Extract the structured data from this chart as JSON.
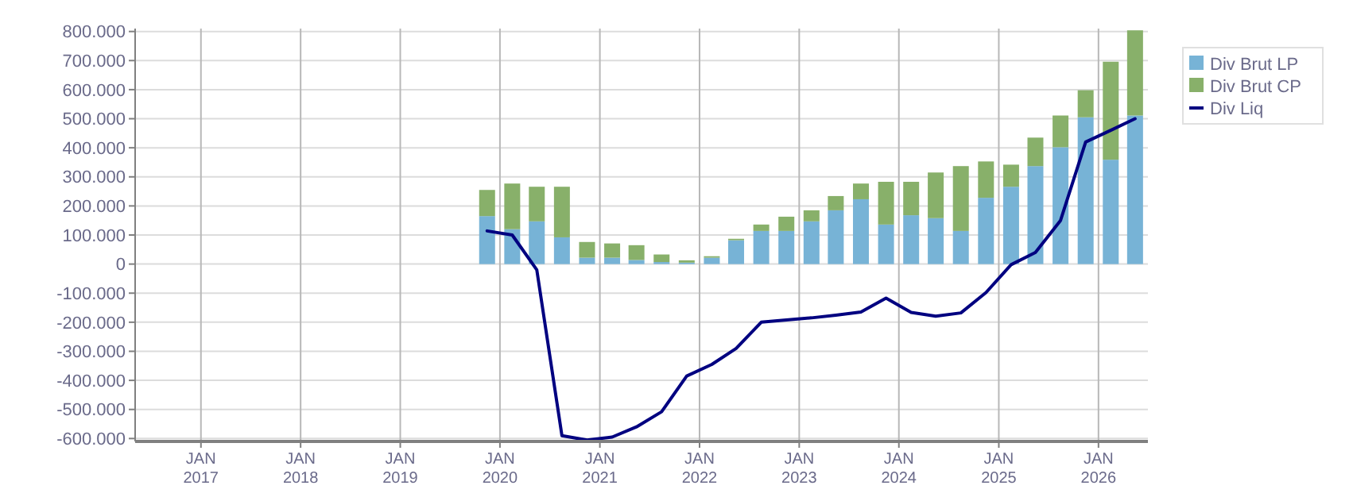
{
  "chart_data": {
    "type": "bar",
    "stacked": true,
    "x": [
      "2019-11-15",
      "2020-02-15",
      "2020-05-15",
      "2020-08-15",
      "2020-11-15",
      "2021-02-15",
      "2021-05-15",
      "2021-08-15",
      "2021-11-15",
      "2022-02-15",
      "2022-05-15",
      "2022-08-15",
      "2022-11-15",
      "2023-02-15",
      "2023-05-15",
      "2023-08-15",
      "2023-11-15",
      "2024-02-15",
      "2024-05-15",
      "2024-08-15",
      "2024-11-15",
      "2025-02-15",
      "2025-05-15",
      "2025-08-15",
      "2025-11-15",
      "2026-02-15",
      "2026-05-15"
    ],
    "series": [
      {
        "name": "Div Brut LP",
        "color": "#77b3d6",
        "values": [
          165000,
          120000,
          147000,
          92000,
          22000,
          22000,
          14000,
          7000,
          5000,
          22000,
          82000,
          114000,
          114000,
          147000,
          185000,
          223000,
          136000,
          168000,
          158000,
          114000,
          228000,
          266000,
          337000,
          402000,
          505000,
          359000,
          511000
        ]
      },
      {
        "name": "Div Brut CP",
        "color": "#88b06a",
        "values": [
          90000,
          157000,
          119000,
          174000,
          54000,
          49000,
          51000,
          26000,
          8000,
          5000,
          5000,
          22000,
          49000,
          38000,
          49000,
          54000,
          147000,
          115000,
          157000,
          223000,
          125000,
          76000,
          98000,
          109000,
          93000,
          337000,
          293000
        ]
      },
      {
        "name": "Div Liq",
        "type": "line",
        "color": "#000080",
        "values": [
          114000,
          100000,
          -20000,
          -590000,
          -605000,
          -595000,
          -560000,
          -508000,
          -385000,
          -345000,
          -290000,
          -200000,
          -192000,
          -185000,
          -176000,
          -165000,
          -117000,
          -166000,
          -179000,
          -168000,
          -98000,
          -2000,
          40000,
          150000,
          420000,
          460000,
          500000
        ]
      }
    ],
    "xlim": [
      "2016-05-05",
      "2026-07-01"
    ],
    "xticks": [
      {
        "value": "2017-01-01",
        "label": "JAN 2017"
      },
      {
        "value": "2018-01-01",
        "label": "JAN 2018"
      },
      {
        "value": "2019-01-01",
        "label": "JAN 2019"
      },
      {
        "value": "2020-01-01",
        "label": "JAN 2020"
      },
      {
        "value": "2021-01-01",
        "label": "JAN 2021"
      },
      {
        "value": "2022-01-01",
        "label": "JAN 2022"
      },
      {
        "value": "2023-01-01",
        "label": "JAN 2023"
      },
      {
        "value": "2024-01-01",
        "label": "JAN 2024"
      },
      {
        "value": "2025-01-01",
        "label": "JAN 2025"
      },
      {
        "value": "2026-01-01",
        "label": "JAN 2026"
      }
    ],
    "ylim": [
      -610000,
      810000
    ],
    "yticks": [
      {
        "value": -600000,
        "label": "-600.000"
      },
      {
        "value": -500000,
        "label": "-500.000"
      },
      {
        "value": -400000,
        "label": "-400.000"
      },
      {
        "value": -300000,
        "label": "-300.000"
      },
      {
        "value": -200000,
        "label": "-200.000"
      },
      {
        "value": -100000,
        "label": "-100.000"
      },
      0,
      {
        "value": 100000,
        "label": "100.000"
      },
      {
        "value": 200000,
        "label": "200.000"
      },
      {
        "value": 300000,
        "label": "300.000"
      },
      {
        "value": 400000,
        "label": "400.000"
      },
      {
        "value": 500000,
        "label": "500.000"
      },
      {
        "value": 600000,
        "label": "600.000"
      },
      {
        "value": 700000,
        "label": "700.000"
      },
      {
        "value": 800000,
        "label": "800.000"
      }
    ],
    "grid": true,
    "legend": "top right",
    "marker": "none",
    "line_style": "solid"
  }
}
